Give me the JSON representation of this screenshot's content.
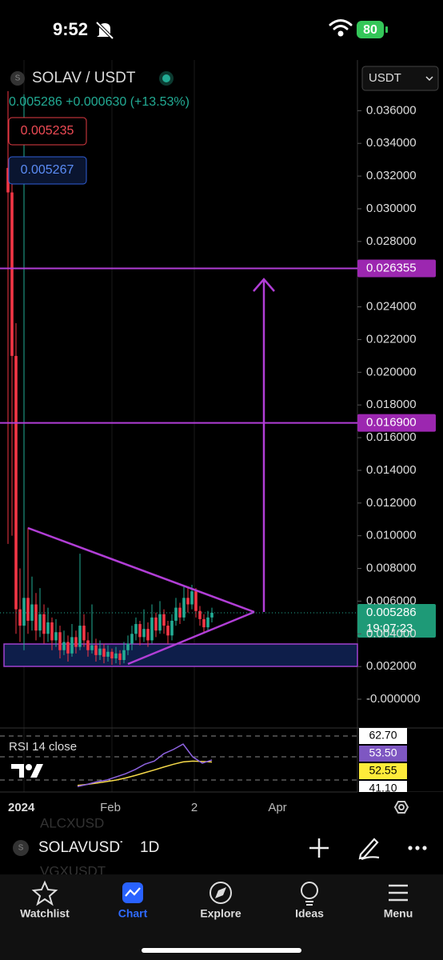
{
  "status": {
    "time": "9:52",
    "battery": "80"
  },
  "chart": {
    "type": "candlestick",
    "symbol": "SOLAV / USDT",
    "currency": "USDT",
    "last": "0.005286",
    "change": "+0.000630",
    "change_pct": "(+13.53%)",
    "bid": "0.005235",
    "ask": "0.005267",
    "ylim": [
      -0.00176,
      0.0391
    ],
    "yticks": [
      {
        "value": 0.036,
        "label": "0.036000"
      },
      {
        "value": 0.034,
        "label": "0.034000"
      },
      {
        "value": 0.032,
        "label": "0.032000"
      },
      {
        "value": 0.03,
        "label": "0.030000"
      },
      {
        "value": 0.028,
        "label": "0.028000"
      },
      {
        "value": 0.024,
        "label": "0.024000"
      },
      {
        "value": 0.022,
        "label": "0.022000"
      },
      {
        "value": 0.02,
        "label": "0.020000"
      },
      {
        "value": 0.018,
        "label": "0.018000"
      },
      {
        "value": 0.016,
        "label": "0.016000"
      },
      {
        "value": 0.014,
        "label": "0.014000"
      },
      {
        "value": 0.012,
        "label": "0.012000"
      },
      {
        "value": 0.01,
        "label": "0.010000"
      },
      {
        "value": 0.008,
        "label": "0.008000"
      },
      {
        "value": 0.006,
        "label": "0.006000"
      },
      {
        "value": 0.004,
        "label": "0.004000"
      },
      {
        "value": 0.002,
        "label": "0.002000"
      },
      {
        "value": 0,
        "label": "-0.000000"
      }
    ],
    "levels": [
      {
        "value": 0.026355,
        "label": "0.026355"
      },
      {
        "value": 0.0169,
        "label": "0.016900"
      }
    ],
    "price": {
      "value": 0.005286,
      "label": "0.005286"
    },
    "countdown": "19:07:23",
    "candles": [
      [
        0.0325,
        0.0372,
        0.0095,
        0.031
      ],
      [
        0.031,
        0.032,
        0.01,
        0.021
      ],
      [
        0.021,
        0.023,
        0.004,
        0.0055
      ],
      [
        0.0055,
        0.008,
        0.0035,
        0.0045
      ],
      [
        0.0045,
        0.037,
        0.003,
        0.0062
      ],
      [
        0.0062,
        0.0105,
        0.004,
        0.0048
      ],
      [
        0.0048,
        0.0075,
        0.0042,
        0.0058
      ],
      [
        0.0058,
        0.0065,
        0.0036,
        0.0042
      ],
      [
        0.0042,
        0.0068,
        0.0038,
        0.0052
      ],
      [
        0.0052,
        0.0058,
        0.0034,
        0.004
      ],
      [
        0.004,
        0.0056,
        0.0035,
        0.0047
      ],
      [
        0.0047,
        0.005,
        0.003,
        0.0036
      ],
      [
        0.0036,
        0.0049,
        0.0032,
        0.0041
      ],
      [
        0.0041,
        0.0045,
        0.0025,
        0.003
      ],
      [
        0.003,
        0.0042,
        0.0027,
        0.0035
      ],
      [
        0.0035,
        0.0039,
        0.0023,
        0.0028
      ],
      [
        0.0028,
        0.0046,
        0.0026,
        0.0038
      ],
      [
        0.0038,
        0.0042,
        0.0028,
        0.0032
      ],
      [
        0.0032,
        0.0089,
        0.003,
        0.0045
      ],
      [
        0.0045,
        0.0052,
        0.0032,
        0.0036
      ],
      [
        0.0036,
        0.0041,
        0.0026,
        0.003
      ],
      [
        0.003,
        0.0058,
        0.0028,
        0.0033
      ],
      [
        0.0033,
        0.0037,
        0.0023,
        0.0027
      ],
      [
        0.0027,
        0.0036,
        0.0024,
        0.0031
      ],
      [
        0.0031,
        0.0034,
        0.0022,
        0.0026
      ],
      [
        0.0026,
        0.0033,
        0.0023,
        0.0029
      ],
      [
        0.0029,
        0.0031,
        0.0021,
        0.0025
      ],
      [
        0.0025,
        0.0032,
        0.0022,
        0.0028
      ],
      [
        0.0028,
        0.003,
        0.0021,
        0.0024
      ],
      [
        0.0024,
        0.0035,
        0.0022,
        0.003
      ],
      [
        0.003,
        0.0039,
        0.0027,
        0.0034
      ],
      [
        0.0034,
        0.0045,
        0.003,
        0.004
      ],
      [
        0.004,
        0.005,
        0.0036,
        0.0046
      ],
      [
        0.0046,
        0.0048,
        0.0033,
        0.0038
      ],
      [
        0.0038,
        0.0055,
        0.0035,
        0.0043
      ],
      [
        0.0043,
        0.0047,
        0.0032,
        0.0036
      ],
      [
        0.0036,
        0.0058,
        0.0034,
        0.005
      ],
      [
        0.005,
        0.0053,
        0.0038,
        0.0042
      ],
      [
        0.0042,
        0.006,
        0.004,
        0.0052
      ],
      [
        0.0052,
        0.0055,
        0.004,
        0.0045
      ],
      [
        0.0045,
        0.0048,
        0.0034,
        0.0039
      ],
      [
        0.0039,
        0.0052,
        0.0036,
        0.0048
      ],
      [
        0.0048,
        0.0062,
        0.0045,
        0.0056
      ],
      [
        0.0056,
        0.0059,
        0.0046,
        0.005
      ],
      [
        0.005,
        0.0069,
        0.0048,
        0.0062
      ],
      [
        0.0062,
        0.0068,
        0.0053,
        0.0058
      ],
      [
        0.0058,
        0.007,
        0.0055,
        0.0066
      ],
      [
        0.0066,
        0.0068,
        0.005,
        0.0054
      ],
      [
        0.0054,
        0.0057,
        0.0045,
        0.0049
      ],
      [
        0.0049,
        0.0052,
        0.0041,
        0.0044
      ],
      [
        0.0044,
        0.0054,
        0.0042,
        0.005
      ],
      [
        0.005,
        0.0056,
        0.0047,
        0.005286
      ]
    ],
    "x_labels": [
      "2024",
      "Feb",
      "2",
      "Apr"
    ],
    "rsi": {
      "title": "RSI 14 close",
      "scale": [
        "62.70",
        "53.50",
        "52.55",
        "41.10"
      ],
      "ylim": [
        38.4,
        68.6
      ],
      "values": [
        41.0,
        42.0,
        43.2,
        44.0,
        45.5,
        47.0,
        49.0,
        51.5,
        53.0,
        56.5,
        58.5,
        61.0,
        55.0,
        52.0,
        53.5
      ],
      "ma": [
        41.5,
        42.0,
        42.6,
        43.3,
        44.0,
        45.0,
        46.2,
        47.5,
        48.8,
        50.2,
        51.5,
        52.6,
        53.0,
        52.8,
        52.55
      ]
    }
  },
  "toolbar": {
    "symbol": "SOLAVUSDT",
    "interval": "1D",
    "ghost_above": "ALCXUSD",
    "ghost_below": "VGXUSDT"
  },
  "tabs": [
    "Watchlist",
    "Chart",
    "Explore",
    "Ideas",
    "Menu"
  ]
}
